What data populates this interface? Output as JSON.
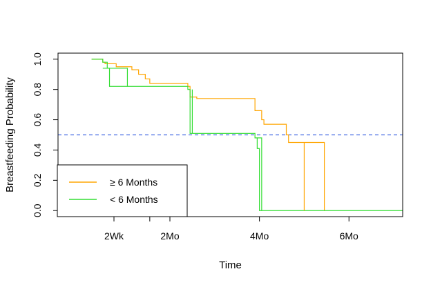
{
  "chart_data": {
    "type": "line",
    "title": "",
    "xlabel": "Time",
    "ylabel": "Breastfeeding Probability",
    "xlim": [
      -0.5,
      7.2
    ],
    "ylim": [
      -0.04,
      1.04
    ],
    "x_ticks": [
      {
        "value": 0.75,
        "label": "2Wk"
      },
      {
        "value": 1.55,
        "label": ""
      },
      {
        "value": 2.0,
        "label": "2Mo"
      },
      {
        "value": 4.0,
        "label": "4Mo"
      },
      {
        "value": 6.0,
        "label": "6Mo"
      }
    ],
    "y_ticks": [
      {
        "value": 0.0,
        "label": "0.0"
      },
      {
        "value": 0.2,
        "label": "0.2"
      },
      {
        "value": 0.4,
        "label": "0.4"
      },
      {
        "value": 0.6,
        "label": "0.6"
      },
      {
        "value": 0.8,
        "label": "0.8"
      },
      {
        "value": 1.0,
        "label": "1.0"
      }
    ],
    "reference_line": {
      "y": 0.5,
      "color": "#4169E1",
      "style": "dashed"
    },
    "legend_position": "bottom-left",
    "series": [
      {
        "name": "≥ 6 Months",
        "color": "#FFA500",
        "x": [
          0.25,
          0.5,
          0.5,
          0.55,
          0.55,
          0.8,
          0.8,
          1.15,
          1.15,
          1.3,
          1.3,
          1.45,
          1.45,
          1.55,
          1.55,
          2.4,
          2.4,
          2.45,
          2.45,
          2.6,
          2.6,
          3.9,
          3.9,
          4.05,
          4.05,
          4.1,
          4.1,
          4.6,
          4.6,
          4.65,
          4.65,
          5.45,
          5.45
        ],
        "y": [
          1.0,
          1.0,
          0.98,
          0.98,
          0.97,
          0.97,
          0.95,
          0.95,
          0.93,
          0.93,
          0.9,
          0.9,
          0.87,
          0.87,
          0.84,
          0.84,
          0.82,
          0.82,
          0.75,
          0.75,
          0.74,
          0.74,
          0.66,
          0.66,
          0.6,
          0.6,
          0.57,
          0.57,
          0.5,
          0.5,
          0.45,
          0.45,
          0.0
        ]
      },
      {
        "name": "< 6 Months",
        "color": "#33DD33",
        "x": [
          0.25,
          0.5,
          0.5,
          0.6,
          0.6,
          0.65,
          0.65,
          2.4,
          2.4,
          2.45,
          2.45,
          3.9,
          3.9,
          3.95,
          3.95,
          4.0,
          4.0,
          7.2
        ],
        "y": [
          1.0,
          1.0,
          0.98,
          0.98,
          0.94,
          0.94,
          0.82,
          0.82,
          0.8,
          0.8,
          0.51,
          0.51,
          0.48,
          0.48,
          0.41,
          0.41,
          0.0,
          0.0
        ]
      }
    ],
    "extra_segments": [
      {
        "series": 1,
        "x": [
          0.5,
          1.05,
          1.05
        ],
        "y": [
          0.94,
          0.94,
          0.82
        ]
      },
      {
        "series": 1,
        "x": [
          2.5,
          2.5
        ],
        "y": [
          0.8,
          0.51
        ]
      },
      {
        "series": 1,
        "x": [
          3.95,
          4.05,
          4.05
        ],
        "y": [
          0.48,
          0.48,
          0.0
        ]
      },
      {
        "series": 0,
        "x": [
          5.0,
          5.0
        ],
        "y": [
          0.45,
          0.0
        ]
      }
    ]
  }
}
